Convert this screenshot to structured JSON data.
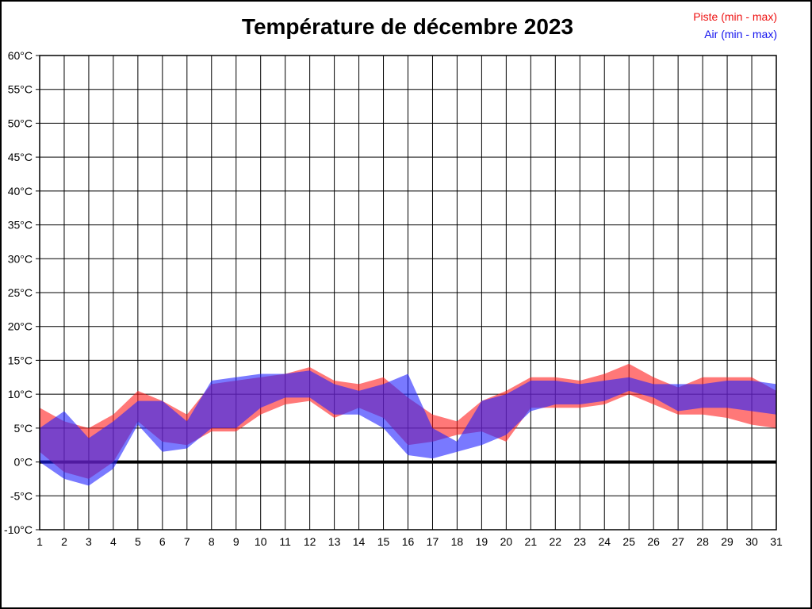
{
  "title": "Température de décembre 2023",
  "legend": {
    "piste": "Piste (min - max)",
    "air": "Air (min - max)"
  },
  "colors": {
    "piste_band": "#ff1e1e",
    "air_band": "#2020ff",
    "band_opacity": 0.6,
    "piste_legend_text": "#ee1111",
    "air_legend_text": "#1111ee",
    "grid": "#000000",
    "zero_line": "#000000",
    "background": "#ffffff"
  },
  "chart_data": {
    "type": "area",
    "title": "Température de décembre 2023",
    "xlabel": "",
    "ylabel": "",
    "x": [
      1,
      2,
      3,
      4,
      5,
      6,
      7,
      8,
      9,
      10,
      11,
      12,
      13,
      14,
      15,
      16,
      17,
      18,
      19,
      20,
      21,
      22,
      23,
      24,
      25,
      26,
      27,
      28,
      29,
      30,
      31
    ],
    "series": [
      {
        "name": "Piste (min - max)",
        "min": [
          1.5,
          -1.5,
          -2.5,
          0,
          6,
          3,
          2.5,
          4.5,
          4.5,
          7,
          8.5,
          9,
          6.5,
          8,
          6.5,
          2.5,
          3,
          4,
          4.5,
          3,
          8,
          8,
          8,
          8.5,
          10,
          8.5,
          7,
          7,
          6.5,
          5.5,
          5
        ],
        "max": [
          8,
          6,
          5,
          7,
          10.5,
          9,
          7,
          11.5,
          12,
          12.5,
          13,
          14,
          12,
          11.5,
          12.5,
          9.5,
          7,
          6,
          9,
          10.5,
          12.5,
          12.5,
          12,
          13,
          14.5,
          12.5,
          11,
          12.5,
          12.5,
          12.5,
          10.5
        ]
      },
      {
        "name": "Air (min - max)",
        "min": [
          0,
          -2.5,
          -3.5,
          -1,
          5.5,
          1.5,
          2,
          5,
          5,
          8,
          9.5,
          9.5,
          7,
          7,
          5,
          1,
          0.5,
          1.5,
          2.5,
          4,
          7.5,
          8.5,
          8.5,
          9,
          10.5,
          9.5,
          7.5,
          8,
          8,
          7.5,
          7
        ],
        "max": [
          5,
          7.5,
          3.5,
          6,
          9,
          9,
          6,
          12,
          12.5,
          13,
          13,
          13.5,
          11.5,
          10.5,
          11.5,
          13,
          5,
          3,
          9,
          10,
          12,
          12,
          11.5,
          12,
          12.5,
          11.5,
          11.5,
          11.5,
          12,
          12,
          11.5
        ]
      }
    ],
    "ylim": [
      -10,
      60
    ],
    "y_ticks": [
      {
        "value": 60,
        "label": "60°C"
      },
      {
        "value": 55,
        "label": "55°C"
      },
      {
        "value": 50,
        "label": "50°C"
      },
      {
        "value": 45,
        "label": "45°C"
      },
      {
        "value": 40,
        "label": "40°C"
      },
      {
        "value": 35,
        "label": "35°C"
      },
      {
        "value": 30,
        "label": "30°C"
      },
      {
        "value": 25,
        "label": "25°C"
      },
      {
        "value": 20,
        "label": "20°C"
      },
      {
        "value": 15,
        "label": "15°C"
      },
      {
        "value": 10,
        "label": "10°C"
      },
      {
        "value": 5,
        "label": "5°C"
      },
      {
        "value": 0,
        "label": "0°C"
      },
      {
        "value": -5,
        "label": "-5°C"
      },
      {
        "value": -10,
        "label": "-10°C"
      }
    ],
    "x_tick_labels": [
      "1",
      "2",
      "3",
      "4",
      "5",
      "6",
      "7",
      "8",
      "9",
      "10",
      "11",
      "12",
      "13",
      "14",
      "15",
      "16",
      "17",
      "18",
      "19",
      "20",
      "21",
      "22",
      "23",
      "24",
      "25",
      "26",
      "27",
      "28",
      "29",
      "30",
      "31"
    ],
    "grid": true,
    "zero_line_thick": true,
    "legend_position": "top-right"
  }
}
